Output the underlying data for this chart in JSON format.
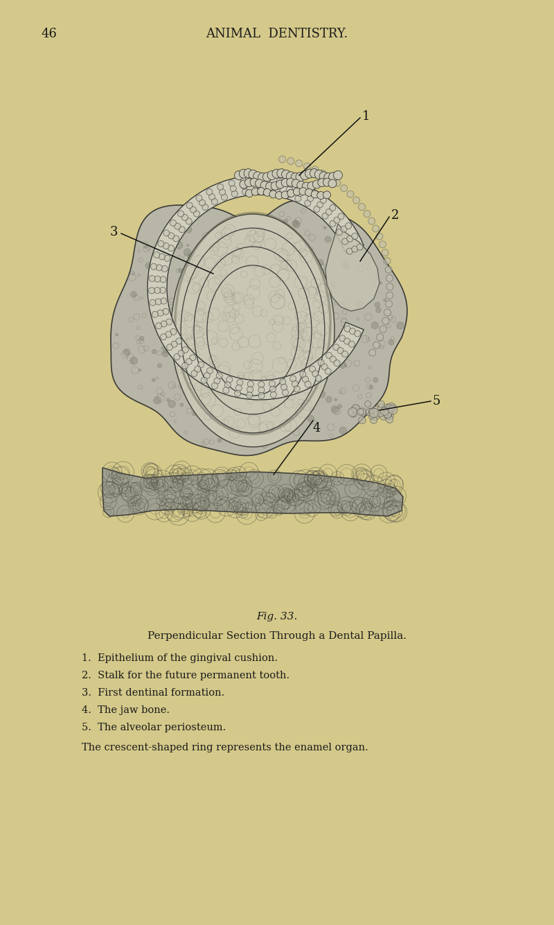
{
  "background_color": "#d4c98a",
  "title_page_number": "46",
  "title_header": "ANIMAL  DENTISTRY.",
  "fig_label": "Fig. 33.",
  "caption_title": "Perpendicular Section Through a Dental Papilla.",
  "caption_items": [
    "1.  Epithelium of the gingival cushion.",
    "2.  Stalk for the future permanent tooth.",
    "3.  First dentinal formation.",
    "4.  The jaw bone.",
    "5.  The alveolar periosteum."
  ],
  "caption_footer": "The crescent-shaped ring represents the enamel organ.",
  "label_1": "1",
  "label_2": "2",
  "label_3": "3",
  "label_4": "4",
  "label_5": "5",
  "header_fontsize": 13,
  "page_num_fontsize": 13,
  "fig_label_fontsize": 11,
  "caption_fontsize": 11,
  "annotation_fontsize": 13
}
